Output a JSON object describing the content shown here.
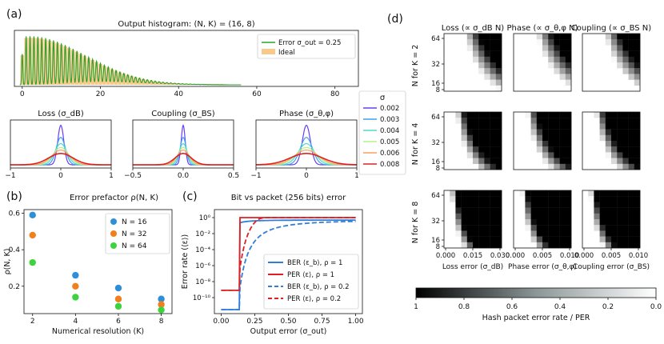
{
  "panels": {
    "a": "(a)",
    "b": "(b)",
    "c": "(c)",
    "d": "(d)"
  },
  "colors": {
    "green": "#2ca02c",
    "ideal": "#f7c98a",
    "blue": "#2f7ed8",
    "red": "#e02020",
    "b_n16": "#2f8ed8",
    "b_n32": "#f07f1e",
    "b_n64": "#3fd23f"
  },
  "chart_data": [
    {
      "id": "a_hist",
      "type": "bar",
      "title": "Output histogram: (N, K) = (16, 8)",
      "xlim": [
        -2,
        86
      ],
      "xticks": [
        0,
        20,
        40,
        60,
        80
      ],
      "legend": {
        "position": "top-right",
        "entries": [
          "Error σ_out = 0.25",
          "Ideal"
        ]
      },
      "note": "Ideal: 1 bar per integer 0..51; Error: green peaks around each integer, amplitude decays with x"
    },
    {
      "id": "a_loss",
      "type": "line",
      "title": "Loss (σ_dB)",
      "xlim": [
        -1,
        1
      ],
      "xticks": [
        "−1",
        "0",
        "1"
      ],
      "sigma": [
        0.002,
        0.003,
        0.004,
        0.005,
        0.006,
        0.008
      ],
      "width_scale": 0.06
    },
    {
      "id": "a_coupling",
      "type": "line",
      "title": "Coupling (σ_BS)",
      "xlim": [
        -0.5,
        0.5
      ],
      "xticks": [
        "−0.5",
        "0.0",
        "0.5"
      ],
      "sigma": [
        0.002,
        0.003,
        0.004,
        0.005,
        0.006,
        0.008
      ],
      "width_scale": 0.02
    },
    {
      "id": "a_phase",
      "type": "line",
      "title": "Phase (σ_θ,φ)",
      "xlim": [
        -1,
        1
      ],
      "xticks": [
        "−1",
        "0",
        "1"
      ],
      "sigma": [
        0.002,
        0.003,
        0.004,
        0.005,
        0.006,
        0.008
      ],
      "width_scale": 0.08
    },
    {
      "id": "a_legend",
      "type": "legend",
      "title": "σ",
      "entries": [
        "0.002",
        "0.003",
        "0.004",
        "0.005",
        "0.006",
        "0.008"
      ],
      "colors": [
        "#6a3df5",
        "#3fa0f0",
        "#52d9d0",
        "#b5f08a",
        "#f8a060",
        "#e02020"
      ]
    },
    {
      "id": "b",
      "type": "scatter",
      "title": "Error prefactor ρ(N, K)",
      "xlabel": "Numerical resolution (K)",
      "ylabel": "ρ(N, K)",
      "xlim": [
        1.6,
        8.5
      ],
      "ylim": [
        0.05,
        0.62
      ],
      "xticks": [
        2,
        4,
        6,
        8
      ],
      "yticks": [
        0.2,
        0.4,
        0.6
      ],
      "x": [
        2,
        4,
        6,
        8
      ],
      "series": [
        {
          "name": "N = 16",
          "values": [
            0.59,
            0.26,
            0.19,
            0.13
          ]
        },
        {
          "name": "N = 32",
          "values": [
            0.48,
            0.2,
            0.13,
            0.1
          ]
        },
        {
          "name": "N = 64",
          "values": [
            0.33,
            0.14,
            0.09,
            0.07
          ]
        }
      ],
      "legend": {
        "position": "top-right"
      }
    },
    {
      "id": "c",
      "type": "line",
      "title": "Bit vs packet (256 bits) error",
      "xlabel": "Output error (σ_out)",
      "ylabel": "Error rate (⟨ε⟩)",
      "xlim": [
        -0.05,
        1.05
      ],
      "ylim_log10": [
        -12,
        1
      ],
      "xticks": [
        "0.00",
        "0.25",
        "0.50",
        "0.75",
        "1.00"
      ],
      "yticks": [
        "10⁰",
        "10⁻²",
        "10⁻⁴",
        "10⁻⁶",
        "10⁻⁸",
        "10⁻¹⁰"
      ],
      "yticks_log10": [
        0,
        -2,
        -4,
        -6,
        -8,
        -10
      ],
      "series": [
        {
          "name": "BER ⟨ε_b⟩, ρ = 1",
          "style": "solid",
          "color": "blue"
        },
        {
          "name": "PER ⟨ε⟩, ρ = 1",
          "style": "solid",
          "color": "red"
        },
        {
          "name": "BER ⟨ε_b⟩, ρ = 0.2",
          "style": "dashed",
          "color": "blue"
        },
        {
          "name": "PER ⟨ε⟩, ρ = 0.2",
          "style": "dashed",
          "color": "red"
        }
      ],
      "legend": {
        "position": "bottom-right"
      }
    },
    {
      "id": "d",
      "type": "heatmap",
      "columns": [
        "Loss (∝ σ_dB N)",
        "Phase (∝ σ_θ,φ N)",
        "Coupling (∝ σ_BS N)"
      ],
      "rows": [
        "N for K = 2",
        "N for K = 4",
        "N for K = 8"
      ],
      "xlabels": [
        "Loss error (σ_dB)",
        "Phase error (σ_θ,φ)",
        "Coupling error (σ_BS)"
      ],
      "xticks": [
        [
          "0.000",
          "0.015",
          "0.030"
        ],
        [
          "0.000",
          "0.005",
          "0.010"
        ],
        [
          "0.000",
          "0.005",
          "0.010"
        ]
      ],
      "yticks": [
        "64",
        "32",
        "16",
        "8"
      ],
      "colorbar": {
        "label": "Hash packet error rate / PER",
        "ticks": [
          "1",
          "0.8",
          "0.6",
          "0.4",
          "0.2",
          "0.0"
        ]
      }
    }
  ]
}
